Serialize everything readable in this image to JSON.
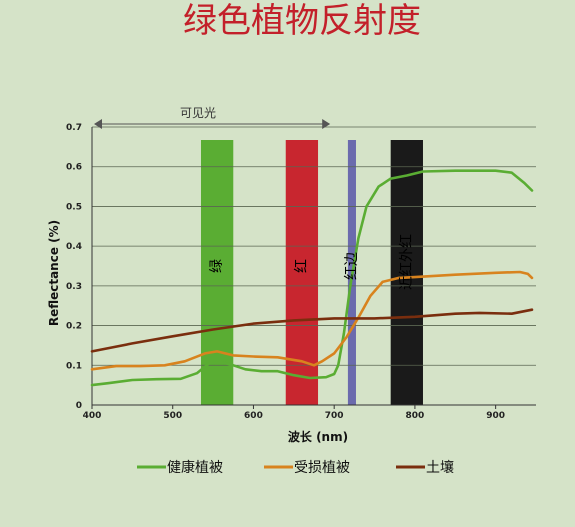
{
  "chart_data": {
    "type": "line",
    "title": "绿色植物反射度",
    "xlabel": "波长 (nm)",
    "ylabel": "Reflectance (%)",
    "xlim": [
      400,
      950
    ],
    "ylim": [
      0,
      0.7
    ],
    "x_ticks": [
      400,
      500,
      600,
      700,
      800,
      900
    ],
    "y_ticks": [
      0,
      0.1,
      0.2,
      0.3,
      0.4,
      0.5,
      0.6,
      0.7
    ],
    "y_tick_labels": [
      "0",
      "0.1",
      "0.2",
      "0.3",
      "0.4",
      "0.5",
      "0.6",
      "0.7"
    ],
    "grid": "horizontal",
    "legend_position": "bottom",
    "visible_range": {
      "label": "可见光",
      "from": 400,
      "to": 700
    },
    "bands": [
      {
        "label": "绿",
        "from": 535,
        "to": 575,
        "color": "#5aad33"
      },
      {
        "label": "红",
        "from": 640,
        "to": 680,
        "color": "#c8262f"
      },
      {
        "label": "红边",
        "from": 717,
        "to": 727,
        "color": "#6b6bad"
      },
      {
        "label": "近红外红",
        "from": 770,
        "to": 810,
        "color": "#1a1a1a"
      }
    ],
    "series": [
      {
        "name": "健康植被",
        "color": "#5aad33",
        "points": [
          [
            400,
            0.05
          ],
          [
            420,
            0.055
          ],
          [
            450,
            0.063
          ],
          [
            480,
            0.065
          ],
          [
            510,
            0.066
          ],
          [
            530,
            0.08
          ],
          [
            545,
            0.105
          ],
          [
            560,
            0.108
          ],
          [
            575,
            0.1
          ],
          [
            590,
            0.09
          ],
          [
            610,
            0.085
          ],
          [
            630,
            0.085
          ],
          [
            650,
            0.075
          ],
          [
            670,
            0.068
          ],
          [
            690,
            0.07
          ],
          [
            700,
            0.078
          ],
          [
            705,
            0.1
          ],
          [
            712,
            0.18
          ],
          [
            720,
            0.3
          ],
          [
            730,
            0.42
          ],
          [
            740,
            0.5
          ],
          [
            755,
            0.55
          ],
          [
            770,
            0.57
          ],
          [
            790,
            0.578
          ],
          [
            810,
            0.588
          ],
          [
            850,
            0.59
          ],
          [
            900,
            0.59
          ],
          [
            920,
            0.585
          ],
          [
            935,
            0.56
          ],
          [
            945,
            0.54
          ]
        ]
      },
      {
        "name": "受损植被",
        "color": "#d8831e",
        "points": [
          [
            400,
            0.09
          ],
          [
            430,
            0.098
          ],
          [
            460,
            0.098
          ],
          [
            490,
            0.1
          ],
          [
            515,
            0.11
          ],
          [
            540,
            0.13
          ],
          [
            555,
            0.135
          ],
          [
            575,
            0.125
          ],
          [
            600,
            0.122
          ],
          [
            630,
            0.12
          ],
          [
            660,
            0.11
          ],
          [
            675,
            0.1
          ],
          [
            685,
            0.11
          ],
          [
            700,
            0.13
          ],
          [
            715,
            0.17
          ],
          [
            730,
            0.22
          ],
          [
            745,
            0.275
          ],
          [
            760,
            0.31
          ],
          [
            780,
            0.32
          ],
          [
            800,
            0.322
          ],
          [
            850,
            0.328
          ],
          [
            900,
            0.333
          ],
          [
            930,
            0.335
          ],
          [
            940,
            0.33
          ],
          [
            945,
            0.32
          ]
        ]
      },
      {
        "name": "土壤",
        "color": "#7a2e0e",
        "points": [
          [
            400,
            0.135
          ],
          [
            450,
            0.155
          ],
          [
            500,
            0.173
          ],
          [
            550,
            0.19
          ],
          [
            600,
            0.205
          ],
          [
            650,
            0.213
          ],
          [
            700,
            0.218
          ],
          [
            750,
            0.218
          ],
          [
            800,
            0.222
          ],
          [
            850,
            0.23
          ],
          [
            880,
            0.232
          ],
          [
            920,
            0.23
          ],
          [
            945,
            0.24
          ]
        ]
      }
    ]
  }
}
